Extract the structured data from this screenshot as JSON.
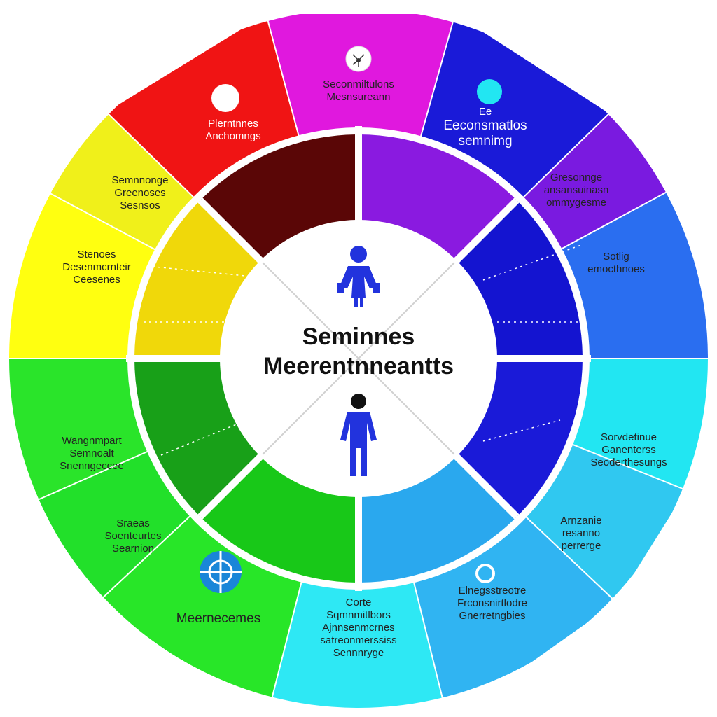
{
  "diagram": {
    "center": {
      "title_line1": "Seminnes",
      "title_line2": "Meerentnneantts",
      "icons": [
        "person-with-bags-icon",
        "standing-person-icon"
      ]
    },
    "segments": [
      {
        "id": "red",
        "color": "#f01414",
        "inner_color": "#5a0606",
        "text": "light",
        "lines": [
          "Plerntnnes",
          "Anchomngs"
        ],
        "icon": "circle-icon"
      },
      {
        "id": "magenta",
        "color": "#e018de",
        "inner_color": "#f02020",
        "text": "dark",
        "lines": [
          "Seconmiltulons",
          "Mesnsureann"
        ],
        "icon": "network-icon"
      },
      {
        "id": "blue",
        "color": "#1a1ad8",
        "inner_color": "#8a1ae0",
        "text": "light",
        "lines": [
          "Ee",
          "Eeconsmatlos",
          "semnimg"
        ],
        "icon": "cyan-circle-icon"
      },
      {
        "id": "purple",
        "color": "#7a1ae0",
        "inner_color": "#1414c8",
        "text": "dark",
        "lines": [
          "Gresonnge",
          "ansansuinasn",
          "ommygesme"
        ]
      },
      {
        "id": "royal-blue",
        "color": "#2a6ef0",
        "inner_color": "#1414d0",
        "text": "dark",
        "lines": [
          "Sotlig",
          "emocthnoes"
        ]
      },
      {
        "id": "light-cyan",
        "color": "#22e6f2",
        "inner_color": "#1a1ad8",
        "text": "dark",
        "lines": [
          "Sorvdetinue",
          "Ganenterss",
          "Seoderthesungs"
        ]
      },
      {
        "id": "sky-blue",
        "color": "#30c8f0",
        "inner_color": "#2aa8ee",
        "text": "dark",
        "lines": [
          "Arnzanie",
          "resanno",
          "perrerge"
        ]
      },
      {
        "id": "aqua-blue",
        "color": "#30b4f2",
        "inner_color": "#22c8f0",
        "text": "dark",
        "lines": [
          "Elnegsstreotre",
          "Frconsnirtlodre",
          "Gnerretngbies"
        ],
        "icon": "ring-icon"
      },
      {
        "id": "cyan",
        "color": "#2ee8f4",
        "inner_color": "#18c818",
        "text": "dark",
        "lines": [
          "Corte",
          "Sqmnmitlbors",
          "Ajnnsenmcrnes",
          "satreonmerssiss",
          "Sennnryge"
        ]
      },
      {
        "id": "green",
        "color": "#28e628",
        "inner_color": "#18b018",
        "text": "dark",
        "lines": [
          "Meernecemes"
        ],
        "icon": "crosshair-icon"
      },
      {
        "id": "grass",
        "color": "#22e02a",
        "inner_color": "#18a018",
        "text": "dark",
        "lines": [
          "Sraeas",
          "Soenteurtes",
          "Searnion"
        ]
      },
      {
        "id": "lime",
        "color": "#2ae42a",
        "inner_color": "#1aa01a",
        "text": "dark",
        "lines": [
          "Wangnmpart",
          "Semnoalt",
          "Snenngeccee"
        ]
      },
      {
        "id": "yellow",
        "color": "#ffff10",
        "inner_color": "#f0e40a",
        "text": "dark",
        "lines": [
          "Stenoes",
          "Desenmcrnteir",
          "Ceesenes"
        ]
      },
      {
        "id": "yellow-top",
        "color": "#f0f01a",
        "inner_color": "#f0d80a",
        "text": "dark",
        "lines": [
          "Semnnonge",
          "Greenoses",
          "Sesnsos"
        ]
      }
    ]
  }
}
